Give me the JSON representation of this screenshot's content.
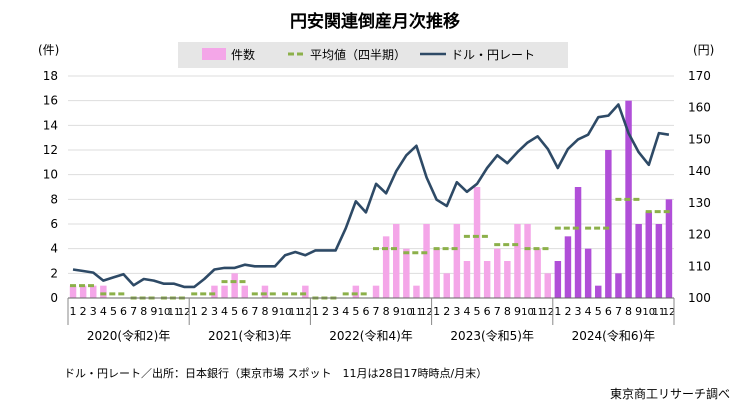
{
  "chart_data": {
    "type": "bar+line",
    "title": "円安関連倒産月次推移",
    "left_axis": {
      "unit_label": "(件)",
      "range": [
        0,
        18
      ],
      "ticks": [
        0,
        2,
        4,
        6,
        8,
        10,
        12,
        14,
        16,
        18
      ]
    },
    "right_axis": {
      "unit_label": "(円)",
      "range": [
        100,
        170
      ],
      "ticks": [
        100,
        110,
        120,
        130,
        140,
        150,
        160,
        170
      ]
    },
    "legend": [
      {
        "label": "件数",
        "type": "bar"
      },
      {
        "label": "平均値（四半期）",
        "type": "dash"
      },
      {
        "label": "ドル・円レート",
        "type": "line"
      }
    ],
    "legend_position": "top",
    "years": [
      "2020(令和2)年",
      "2021(令和3)年",
      "2022(令和4)年",
      "2023(令和5)年",
      "2024(令和6)年"
    ],
    "month_ticks": [
      "1",
      "2",
      "3",
      "4",
      "5",
      "6",
      "7",
      "8",
      "9",
      "10",
      "11",
      "12",
      "1",
      "2",
      "3",
      "4",
      "5",
      "6",
      "7",
      "8",
      "9",
      "10",
      "11",
      "12",
      "1",
      "2",
      "3",
      "4",
      "5",
      "6",
      "7",
      "8",
      "9",
      "10",
      "11",
      "12",
      "1",
      "2",
      "3",
      "4",
      "5",
      "6",
      "7",
      "8",
      "9",
      "10",
      "11",
      "12",
      "1",
      "2",
      "3",
      "4",
      "5",
      "6",
      "7",
      "8",
      "9",
      "10",
      "11",
      "12"
    ],
    "counts": [
      1,
      1,
      1,
      1,
      0,
      0,
      0,
      0,
      0,
      0,
      0,
      0,
      0,
      0,
      1,
      1,
      2,
      1,
      0,
      1,
      0,
      0,
      0,
      1,
      0,
      0,
      0,
      0,
      1,
      0,
      1,
      5,
      6,
      4,
      1,
      6,
      4,
      2,
      6,
      3,
      9,
      3,
      4,
      3,
      6,
      6,
      4,
      2,
      3,
      5,
      9,
      4,
      1,
      12,
      2,
      16,
      6,
      7,
      6,
      8
    ],
    "bar_colors": {
      "2020_2023": "#f4a6e8",
      "2024": "#b04fd8"
    },
    "quarter_avg": [
      1,
      0.33,
      0,
      0,
      0.33,
      1.33,
      0.33,
      0.33,
      0,
      0.33,
      4,
      3.67,
      4,
      5,
      4.33,
      4,
      5.67,
      5.67,
      8,
      7
    ],
    "usd_jpy": [
      109,
      108.5,
      108,
      105.5,
      106.5,
      107.5,
      104,
      106,
      105.5,
      104.5,
      104.5,
      103.5,
      103.5,
      106,
      109,
      109.5,
      109.5,
      110.5,
      110,
      110,
      110,
      113.5,
      114.5,
      113.5,
      115,
      115,
      115,
      122,
      130.5,
      127,
      136,
      133,
      140,
      145,
      148,
      138,
      131,
      129,
      136.5,
      133.5,
      136,
      141,
      145,
      142.5,
      146,
      149,
      151,
      147,
      141,
      147,
      150,
      151.5,
      157,
      157.5,
      161,
      152,
      146,
      142,
      152,
      151.5
    ],
    "colors": {
      "line": "#2e4a66",
      "avg_dash": "#8cb04a",
      "legend_box": "#e6e6e6",
      "grid": "#dddddd"
    }
  },
  "footer": {
    "source_note": "ドル・円レート／出所：日本銀行（東京市場 スポット　11月は28日17時時点/月末）",
    "credit": "東京商工リサーチ調べ"
  }
}
